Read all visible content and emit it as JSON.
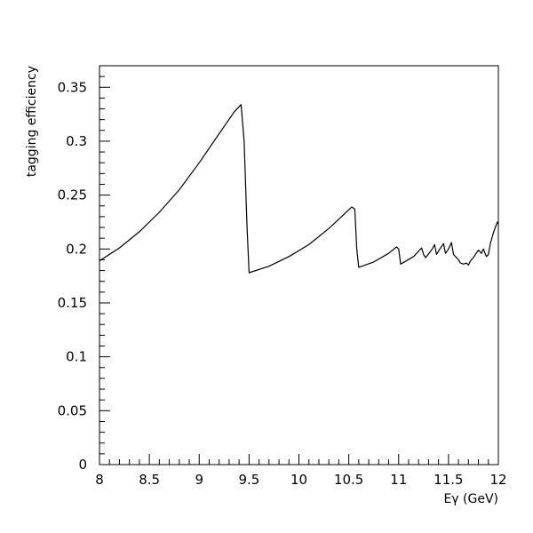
{
  "chart_data": {
    "type": "line",
    "title": "",
    "xlabel": "Eγ (GeV)",
    "ylabel": "tagging efficiency",
    "xlim": [
      8,
      12
    ],
    "ylim": [
      0,
      0.37
    ],
    "grid": false,
    "x_ticks": [
      "8",
      "8.5",
      "9",
      "9.5",
      "10",
      "10.5",
      "11",
      "11.5",
      "12"
    ],
    "y_ticks": [
      "0",
      "0.05",
      "0.1",
      "0.15",
      "0.2",
      "0.25",
      "0.3",
      "0.35"
    ],
    "series": [
      {
        "color": "#000000",
        "x": [
          8.0,
          8.2,
          8.4,
          8.6,
          8.8,
          9.0,
          9.2,
          9.35,
          9.42,
          9.45,
          9.48,
          9.5,
          9.7,
          9.9,
          10.1,
          10.3,
          10.45,
          10.53,
          10.56,
          10.58,
          10.6,
          10.75,
          10.9,
          10.98,
          11.0,
          11.02,
          11.15,
          11.23,
          11.25,
          11.27,
          11.33,
          11.36,
          11.38,
          11.42,
          11.45,
          11.47,
          11.5,
          11.53,
          11.55,
          11.57,
          11.6,
          11.62,
          11.65,
          11.68,
          11.7,
          11.72,
          11.75,
          11.77,
          11.8,
          11.83,
          11.85,
          11.88,
          11.9,
          11.92,
          11.95,
          11.97,
          11.99,
          12.0
        ],
        "y": [
          0.189,
          0.201,
          0.216,
          0.234,
          0.255,
          0.28,
          0.307,
          0.327,
          0.334,
          0.3,
          0.22,
          0.178,
          0.184,
          0.193,
          0.204,
          0.219,
          0.232,
          0.239,
          0.237,
          0.2,
          0.183,
          0.188,
          0.196,
          0.202,
          0.2,
          0.186,
          0.193,
          0.201,
          0.195,
          0.192,
          0.199,
          0.204,
          0.195,
          0.201,
          0.205,
          0.196,
          0.2,
          0.206,
          0.195,
          0.193,
          0.19,
          0.187,
          0.186,
          0.187,
          0.185,
          0.189,
          0.192,
          0.195,
          0.199,
          0.196,
          0.2,
          0.193,
          0.195,
          0.205,
          0.215,
          0.22,
          0.225,
          0.223
        ]
      }
    ]
  }
}
